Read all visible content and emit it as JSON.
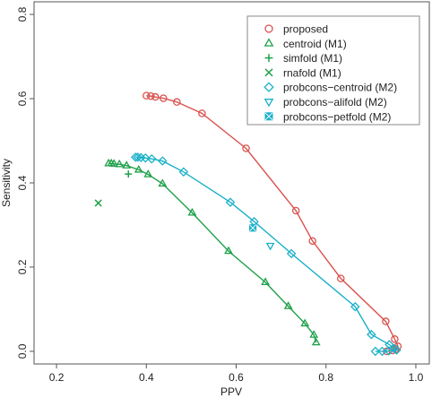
{
  "chart_data": {
    "type": "line",
    "title": "",
    "xlabel": "PPV",
    "ylabel": "Sensitivity",
    "xlim": [
      0.15,
      1.03
    ],
    "ylim": [
      -0.03,
      0.83
    ],
    "xticks": [
      0.2,
      0.4,
      0.6,
      0.8,
      1.0
    ],
    "xtick_labels": [
      "0.2",
      "0.4",
      "0.6",
      "0.8",
      "1.0"
    ],
    "yticks": [
      0.0,
      0.2,
      0.4,
      0.6,
      0.8
    ],
    "ytick_labels": [
      "0.0",
      "0.2",
      "0.4",
      "0.6",
      "0.8"
    ],
    "grid": false,
    "legend_position": "top-right",
    "series": [
      {
        "name": "proposed",
        "color": "#d9534f",
        "marker": "circle",
        "line": true,
        "points": [
          [
            0.4,
            0.607
          ],
          [
            0.41,
            0.606
          ],
          [
            0.42,
            0.604
          ],
          [
            0.438,
            0.601
          ],
          [
            0.468,
            0.592
          ],
          [
            0.524,
            0.565
          ],
          [
            0.622,
            0.482
          ],
          [
            0.733,
            0.334
          ],
          [
            0.77,
            0.262
          ],
          [
            0.833,
            0.173
          ],
          [
            0.933,
            0.071
          ],
          [
            0.953,
            0.029
          ],
          [
            0.96,
            0.012
          ],
          [
            0.955,
            0.005
          ],
          [
            0.948,
            0.002
          ],
          [
            0.935,
            0.0
          ]
        ]
      },
      {
        "name": "centroid (M1)",
        "color": "#1ea04a",
        "marker": "triangle-up",
        "line": true,
        "points": [
          [
            0.316,
            0.446
          ],
          [
            0.322,
            0.446
          ],
          [
            0.328,
            0.445
          ],
          [
            0.34,
            0.444
          ],
          [
            0.356,
            0.441
          ],
          [
            0.383,
            0.431
          ],
          [
            0.404,
            0.42
          ],
          [
            0.436,
            0.398
          ],
          [
            0.502,
            0.329
          ],
          [
            0.583,
            0.238
          ],
          [
            0.665,
            0.164
          ],
          [
            0.716,
            0.107
          ],
          [
            0.753,
            0.066
          ],
          [
            0.773,
            0.039
          ],
          [
            0.778,
            0.021
          ]
        ]
      },
      {
        "name": "simfold (M1)",
        "color": "#1ea04a",
        "marker": "plus",
        "line": false,
        "points": [
          [
            0.36,
            0.421
          ]
        ]
      },
      {
        "name": "rnafold (M1)",
        "color": "#1ea04a",
        "marker": "x",
        "line": false,
        "points": [
          [
            0.293,
            0.352
          ]
        ]
      },
      {
        "name": "probcons−centroid (M2)",
        "color": "#1ab0c8",
        "marker": "diamond",
        "line": true,
        "points": [
          [
            0.376,
            0.461
          ],
          [
            0.381,
            0.461
          ],
          [
            0.388,
            0.46
          ],
          [
            0.398,
            0.459
          ],
          [
            0.412,
            0.457
          ],
          [
            0.436,
            0.452
          ],
          [
            0.483,
            0.426
          ],
          [
            0.587,
            0.354
          ],
          [
            0.64,
            0.308
          ],
          [
            0.723,
            0.232
          ],
          [
            0.865,
            0.106
          ],
          [
            0.901,
            0.04
          ],
          [
            0.941,
            0.016
          ],
          [
            0.952,
            0.007
          ],
          [
            0.957,
            0.003
          ],
          [
            0.94,
            0.001
          ],
          [
            0.925,
            0.0
          ],
          [
            0.91,
            0.0
          ]
        ]
      },
      {
        "name": "probcons−alifold (M2)",
        "color": "#1ab0c8",
        "marker": "triangle-down",
        "line": false,
        "points": [
          [
            0.676,
            0.251
          ]
        ]
      },
      {
        "name": "probcons−petfold (M2)",
        "color": "#1ab0c8",
        "marker": "square-x",
        "line": false,
        "points": [
          [
            0.637,
            0.293
          ]
        ]
      }
    ]
  }
}
